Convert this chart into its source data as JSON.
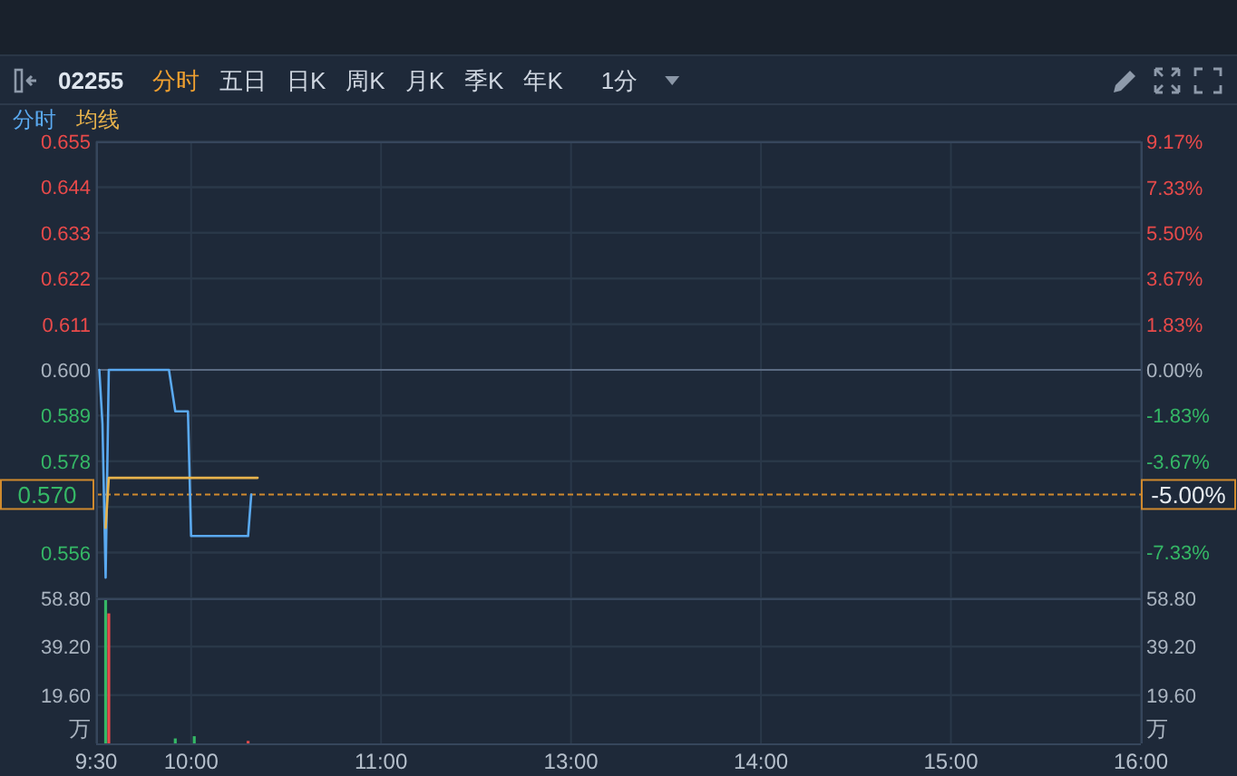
{
  "chart_data": [
    {
      "type": "line",
      "title": "02255",
      "annotations": [
        "分时",
        "五日",
        "日K",
        "周K",
        "月K",
        "季K",
        "年K",
        "1分",
        "-5.00%"
      ],
      "categories": [
        null,
        null,
        null,
        null,
        null,
        null,
        null,
        null,
        null,
        null,
        null,
        null,
        null,
        null,
        null,
        null,
        null,
        null,
        null,
        null,
        null,
        null,
        null,
        null,
        null,
        null,
        null,
        null,
        null,
        null,
        null,
        null,
        null,
        null,
        null,
        null,
        null,
        null,
        null,
        null,
        null,
        null,
        null,
        null,
        null,
        null,
        null,
        null,
        null,
        null,
        null,
        null,
        null,
        null,
        null,
        null,
        null,
        null,
        null,
        null,
        null,
        null,
        null,
        null,
        null,
        null,
        null,
        null,
        null,
        null,
        null,
        null,
        null,
        null,
        null,
        null,
        null,
        null,
        null,
        null,
        null,
        null,
        null,
        null,
        null,
        null,
        null,
        null,
        null,
        null,
        null,
        null,
        null,
        null,
        null,
        null,
        null,
        null,
        null,
        null,
        null,
        null,
        null,
        null,
        null,
        null,
        null,
        null,
        null,
        null,
        null,
        null,
        null,
        null,
        null,
        null,
        null,
        null,
        null,
        null,
        null,
        null,
        null,
        null,
        null,
        null,
        null,
        null,
        null,
        null,
        null,
        null,
        null,
        null,
        null,
        null,
        null,
        null,
        null,
        null,
        null,
        null,
        null,
        null,
        null,
        null,
        null,
        null,
        null,
        null,
        null,
        null,
        null,
        null,
        null,
        null,
        null,
        null,
        null,
        null,
        null,
        null,
        null,
        null,
        null,
        null,
        null,
        null,
        null,
        null,
        null,
        null,
        null,
        null,
        null,
        null,
        null,
        null,
        null,
        null,
        null,
        null,
        null,
        null,
        null,
        null,
        null,
        null,
        null,
        null,
        null,
        null,
        null,
        null,
        null,
        null,
        null,
        null,
        null,
        null,
        null,
        null,
        null,
        null,
        null,
        null,
        null,
        null,
        null,
        null,
        null,
        null,
        null,
        null,
        null,
        null,
        null,
        null,
        null,
        null,
        null,
        null,
        null,
        null,
        null,
        null,
        null,
        null,
        null,
        null,
        null,
        null,
        null,
        null,
        null,
        null,
        null,
        null,
        null,
        null,
        null,
        null,
        null,
        null,
        null,
        null,
        null,
        null,
        null,
        null,
        null,
        null,
        null,
        null,
        null,
        null,
        null,
        null,
        null,
        null,
        null,
        null,
        null,
        null,
        null,
        null,
        null,
        null,
        null,
        null,
        null,
        null,
        null,
        null,
        null,
        null,
        null,
        null,
        null,
        null,
        null,
        null,
        null,
        null,
        null,
        null,
        null,
        null,
        null,
        null,
        null,
        null,
        null,
        null,
        null,
        null,
        null,
        null,
        null,
        null,
        null,
        null,
        null,
        null,
        null,
        null,
        null,
        null,
        null,
        null,
        null,
        null,
        null,
        null,
        null,
        null,
        null,
        null,
        null,
        null,
        null,
        null,
        null,
        null,
        null,
        null,
        null,
        null,
        null,
        null,
        null
      ],
      "ylim": [
        0.545,
        0.655
      ],
      "yticks": [
        {
          "value": 0.655,
          "label": "0.655"
        },
        {
          "value": 0.644,
          "label": "0.644"
        },
        {
          "value": 0.633,
          "label": "0.633"
        },
        {
          "value": 0.622,
          "label": "0.622"
        },
        {
          "value": 0.611,
          "label": "0.611"
        },
        {
          "value": 0.6,
          "label": "0.600"
        },
        {
          "value": 0.589,
          "label": "0.589"
        },
        {
          "value": 0.578,
          "label": "0.578"
        },
        {
          "value": 0.567,
          "label": null
        },
        {
          "value": 0.556,
          "label": "0.556"
        }
      ],
      "y2lim": [
        -9.17,
        9.17
      ],
      "y2ticks": [
        {
          "value": 9.17,
          "label": "9.17%"
        },
        {
          "value": 7.33,
          "label": "7.33%"
        },
        {
          "value": 5.5,
          "label": "5.50%"
        },
        {
          "value": 3.67,
          "label": "3.67%"
        },
        {
          "value": 1.83,
          "label": "1.83%"
        },
        {
          "value": 0,
          "label": "0.00%"
        },
        {
          "value": -1.83,
          "label": "-1.83%"
        },
        {
          "value": -3.67,
          "label": "-3.67%"
        },
        {
          "value": -5.5,
          "label": null
        },
        {
          "value": -7.33,
          "label": "-7.33%"
        }
      ],
      "series": [
        {
          "name": "分时",
          "color": "#5aa9f0",
          "values": [
            null,
            0.6,
            0.587,
            0.55,
            0.6,
            0.6,
            0.6,
            0.6,
            0.6,
            0.6,
            0.6,
            0.6,
            0.6,
            0.6,
            0.6,
            0.6,
            0.6,
            0.6,
            0.6,
            0.6,
            0.6,
            0.6,
            0.6,
            0.6,
            0.595,
            0.59,
            0.59,
            0.59,
            0.59,
            0.59,
            0.56,
            0.56,
            0.56,
            0.56,
            0.56,
            0.56,
            0.56,
            0.56,
            0.56,
            0.56,
            0.56,
            0.56,
            0.56,
            0.56,
            0.56,
            0.56,
            0.56,
            0.56,
            0.56,
            0.57,
            null,
            null,
            null,
            null,
            null,
            null,
            null,
            null,
            null,
            null,
            null,
            null,
            null,
            null,
            null,
            null,
            null,
            null,
            null,
            null,
            null,
            null,
            null,
            null,
            null,
            null,
            null,
            null,
            null,
            null,
            null,
            null,
            null,
            null,
            null,
            null,
            null,
            null,
            null,
            null,
            null,
            null,
            null,
            null,
            null,
            null,
            null,
            null,
            null,
            null,
            null,
            null,
            null,
            null,
            null,
            null,
            null,
            null,
            null,
            null,
            null,
            null,
            null,
            null,
            null,
            null,
            null,
            null,
            null,
            null,
            null,
            null,
            null,
            null,
            null,
            null,
            null,
            null,
            null,
            null,
            null,
            null,
            null,
            null,
            null,
            null,
            null,
            null,
            null,
            null,
            null,
            null,
            null,
            null,
            null,
            null,
            null,
            null,
            null,
            null,
            null,
            null,
            null,
            null,
            null,
            null,
            null,
            null,
            null,
            null,
            null,
            null,
            null,
            null,
            null,
            null,
            null,
            null,
            null,
            null,
            null,
            null,
            null,
            null,
            null,
            null,
            null,
            null,
            null,
            null,
            null,
            null,
            null,
            null,
            null,
            null,
            null,
            null,
            null,
            null,
            null,
            null,
            null,
            null,
            null,
            null,
            null,
            null,
            null,
            null,
            null,
            null,
            null,
            null,
            null,
            null,
            null,
            null,
            null,
            null,
            null,
            null,
            null,
            null,
            null,
            null,
            null,
            null,
            null,
            null,
            null,
            null,
            null,
            null,
            null,
            null,
            null,
            null,
            null,
            null,
            null,
            null,
            null,
            null,
            null,
            null,
            null,
            null,
            null,
            null,
            null,
            null,
            null,
            null,
            null,
            null,
            null,
            null,
            null,
            null,
            null,
            null,
            null,
            null,
            null,
            null,
            null,
            null,
            null,
            null,
            null,
            null,
            null,
            null,
            null,
            null,
            null,
            null,
            null,
            null,
            null,
            null,
            null,
            null,
            null,
            null,
            null,
            null,
            null,
            null,
            null,
            null,
            null,
            null,
            null,
            null,
            null,
            null,
            null,
            null,
            null,
            null,
            null,
            null,
            null,
            null,
            null,
            null,
            null,
            null,
            null,
            null,
            null,
            null,
            null,
            null,
            null,
            null,
            null,
            null,
            null,
            null,
            null,
            null,
            null,
            null,
            null,
            null,
            null,
            null,
            null,
            null,
            null,
            null,
            null,
            null,
            null,
            null,
            null,
            null,
            null
          ]
        },
        {
          "name": "均线",
          "color": "#e8b34c",
          "values": [
            null,
            null,
            null,
            0.562,
            0.574,
            0.574,
            0.574,
            0.574,
            0.574,
            0.574,
            0.574,
            0.574,
            0.574,
            0.574,
            0.574,
            0.574,
            0.574,
            0.574,
            0.574,
            0.574,
            0.574,
            0.574,
            0.574,
            0.574,
            0.574,
            0.574,
            0.574,
            0.574,
            0.574,
            0.574,
            0.574,
            0.574,
            0.574,
            0.574,
            0.574,
            0.574,
            0.574,
            0.574,
            0.574,
            0.574,
            0.574,
            0.574,
            0.574,
            0.574,
            0.574,
            0.574,
            0.574,
            0.574,
            0.574,
            0.574,
            0.574,
            0.574,
            null,
            null,
            null,
            null,
            null,
            null,
            null,
            null,
            null,
            null,
            null,
            null,
            null,
            null,
            null,
            null,
            null,
            null,
            null,
            null,
            null,
            null,
            null,
            null,
            null,
            null,
            null,
            null,
            null,
            null,
            null,
            null,
            null,
            null,
            null,
            null,
            null,
            null,
            null,
            null,
            null,
            null,
            null,
            null,
            null,
            null,
            null,
            null,
            null,
            null,
            null,
            null,
            null,
            null,
            null,
            null,
            null,
            null,
            null,
            null,
            null,
            null,
            null,
            null,
            null,
            null,
            null,
            null,
            null,
            null,
            null,
            null,
            null,
            null,
            null,
            null,
            null,
            null,
            null,
            null,
            null,
            null,
            null,
            null,
            null,
            null,
            null,
            null,
            null,
            null,
            null,
            null,
            null,
            null,
            null,
            null,
            null,
            null,
            null,
            null,
            null,
            null,
            null,
            null,
            null,
            null,
            null,
            null,
            null,
            null,
            null,
            null,
            null,
            null,
            null,
            null,
            null,
            null,
            null,
            null,
            null,
            null,
            null,
            null,
            null,
            null,
            null,
            null,
            null,
            null,
            null,
            null,
            null,
            null,
            null,
            null,
            null,
            null,
            null,
            null,
            null,
            null,
            null,
            null,
            null,
            null,
            null,
            null,
            null,
            null,
            null,
            null,
            null,
            null,
            null,
            null,
            null,
            null,
            null,
            null,
            null,
            null,
            null,
            null,
            null,
            null,
            null,
            null,
            null,
            null,
            null,
            null,
            null,
            null,
            null,
            null,
            null,
            null,
            null,
            null,
            null,
            null,
            null,
            null,
            null,
            null,
            null,
            null,
            null,
            null,
            null,
            null,
            null,
            null,
            null,
            null,
            null,
            null,
            null,
            null,
            null,
            null,
            null,
            null,
            null,
            null,
            null,
            null,
            null,
            null,
            null,
            null,
            null,
            null,
            null,
            null,
            null,
            null,
            null,
            null,
            null,
            null,
            null,
            null,
            null,
            null,
            null,
            null,
            null,
            null,
            null,
            null,
            null,
            null,
            null,
            null,
            null,
            null,
            null,
            null,
            null,
            null,
            null,
            null,
            null,
            null,
            null,
            null,
            null,
            null,
            null,
            null,
            null,
            null,
            null,
            null,
            null,
            null,
            null,
            null,
            null,
            null,
            null,
            null,
            null,
            null,
            null,
            null,
            null,
            null,
            null,
            null,
            null,
            null,
            null,
            null,
            null,
            null,
            null
          ]
        }
      ],
      "ref_lines": [
        {
          "axis": "y",
          "value": 0.6,
          "color": "#5b6b82"
        },
        {
          "axis": "y",
          "value": 0.57,
          "label": "0.570",
          "color": "#d08a2e",
          "line_style": "dashed"
        }
      ],
      "grid": true,
      "legend": "top left",
      "tick_labels": "y"
    },
    {
      "type": "bar",
      "ylabel": "万",
      "y2label": "万",
      "categories": [
        "9:30",
        null,
        null,
        null,
        null,
        null,
        null,
        null,
        null,
        null,
        null,
        null,
        null,
        null,
        null,
        null,
        null,
        null,
        null,
        null,
        null,
        null,
        null,
        null,
        null,
        null,
        null,
        null,
        null,
        null,
        "10:00",
        null,
        null,
        null,
        null,
        null,
        null,
        null,
        null,
        null,
        null,
        null,
        null,
        null,
        null,
        null,
        null,
        null,
        null,
        null,
        null,
        null,
        null,
        null,
        null,
        null,
        null,
        null,
        null,
        null,
        null,
        null,
        null,
        null,
        null,
        null,
        null,
        null,
        null,
        null,
        null,
        null,
        null,
        null,
        null,
        null,
        null,
        null,
        null,
        null,
        null,
        null,
        null,
        null,
        null,
        null,
        null,
        null,
        null,
        null,
        "11:00",
        null,
        null,
        null,
        null,
        null,
        null,
        null,
        null,
        null,
        null,
        null,
        null,
        null,
        null,
        null,
        null,
        null,
        null,
        null,
        null,
        null,
        null,
        null,
        null,
        null,
        null,
        null,
        null,
        null,
        null,
        null,
        null,
        null,
        null,
        null,
        null,
        null,
        null,
        null,
        null,
        null,
        null,
        null,
        null,
        null,
        null,
        null,
        null,
        null,
        null,
        null,
        null,
        null,
        null,
        null,
        null,
        null,
        null,
        null,
        "13:00",
        null,
        null,
        null,
        null,
        null,
        null,
        null,
        null,
        null,
        null,
        null,
        null,
        null,
        null,
        null,
        null,
        null,
        null,
        null,
        null,
        null,
        null,
        null,
        null,
        null,
        null,
        null,
        null,
        null,
        null,
        null,
        null,
        null,
        null,
        null,
        null,
        null,
        null,
        null,
        null,
        null,
        null,
        null,
        null,
        null,
        null,
        null,
        null,
        null,
        null,
        null,
        null,
        null,
        null,
        null,
        null,
        null,
        null,
        null,
        "14:00",
        null,
        null,
        null,
        null,
        null,
        null,
        null,
        null,
        null,
        null,
        null,
        null,
        null,
        null,
        null,
        null,
        null,
        null,
        null,
        null,
        null,
        null,
        null,
        null,
        null,
        null,
        null,
        null,
        null,
        null,
        null,
        null,
        null,
        null,
        null,
        null,
        null,
        null,
        null,
        null,
        null,
        null,
        null,
        null,
        null,
        null,
        null,
        null,
        null,
        null,
        null,
        null,
        null,
        null,
        null,
        null,
        null,
        null,
        null,
        "15:00",
        null,
        null,
        null,
        null,
        null,
        null,
        null,
        null,
        null,
        null,
        null,
        null,
        null,
        null,
        null,
        null,
        null,
        null,
        null,
        null,
        null,
        null,
        null,
        null,
        null,
        null,
        null,
        null,
        null,
        null,
        null,
        null,
        null,
        null,
        null,
        null,
        null,
        null,
        null,
        null,
        null,
        null,
        null,
        null,
        null,
        null,
        null,
        null,
        null,
        null,
        null,
        null,
        null,
        null,
        null,
        null,
        null,
        null,
        null,
        "16:00"
      ],
      "series": [
        {
          "color": "#35b866",
          "values": [
            null,
            null,
            null,
            58.1,
            null,
            null,
            null,
            null,
            null,
            null,
            null,
            null,
            null,
            null,
            null,
            null,
            null,
            null,
            null,
            null,
            null,
            null,
            null,
            null,
            null,
            2.0,
            null,
            null,
            null,
            null,
            null,
            2.9,
            null,
            null,
            null,
            null,
            null,
            null,
            null,
            null,
            null,
            null,
            null,
            null,
            null,
            null,
            null,
            null,
            null,
            null,
            null,
            null,
            null,
            null,
            null,
            null,
            null,
            null,
            null,
            null,
            null,
            null,
            null,
            null,
            null,
            null,
            null,
            null,
            null,
            null,
            null,
            null,
            null,
            null,
            null,
            null,
            null,
            null,
            null,
            null,
            null,
            null,
            null,
            null,
            null,
            null,
            null,
            null,
            null,
            null,
            null,
            null,
            null,
            null,
            null,
            null,
            null,
            null,
            null,
            null,
            null,
            null,
            null,
            null,
            null,
            null,
            null,
            null,
            null,
            null,
            null,
            null,
            null,
            null,
            null,
            null,
            null,
            null,
            null,
            null,
            null,
            null,
            null,
            null,
            null,
            null,
            null,
            null,
            null,
            null,
            null,
            null,
            null,
            null,
            null,
            null,
            null,
            null,
            null,
            null,
            null,
            null,
            null,
            null,
            null,
            null,
            null,
            null,
            null,
            null,
            null,
            null,
            null,
            null,
            null,
            null,
            null,
            null,
            null,
            null,
            null,
            null,
            null,
            null,
            null,
            null,
            null,
            null,
            null,
            null,
            null,
            null,
            null,
            null,
            null,
            null,
            null,
            null,
            null,
            null,
            null,
            null,
            null,
            null,
            null,
            null,
            null,
            null,
            null,
            null,
            null,
            null,
            null,
            null,
            null,
            null,
            null,
            null,
            null,
            null,
            null,
            null,
            null,
            null,
            null,
            null,
            null,
            null,
            null,
            null,
            null,
            null,
            null,
            null,
            null,
            null,
            null,
            null,
            null,
            null,
            null,
            null,
            null,
            null,
            null,
            null,
            null,
            null,
            null,
            null,
            null,
            null,
            null,
            null,
            null,
            null,
            null,
            null,
            null,
            null,
            null,
            null,
            null,
            null,
            null,
            null,
            null,
            null,
            null,
            null,
            null,
            null,
            null,
            null,
            null,
            null,
            null,
            null,
            null,
            null,
            null,
            null,
            null,
            null,
            null,
            null,
            null,
            null,
            null,
            null,
            null,
            null,
            null,
            null,
            null,
            null,
            null,
            null,
            null,
            null,
            null,
            null,
            null,
            null,
            null,
            null,
            null,
            null,
            null,
            null,
            null,
            null,
            null,
            null,
            null,
            null,
            null,
            null,
            null,
            null,
            null,
            null,
            null,
            null,
            null,
            null,
            null,
            null,
            null,
            null,
            null,
            null,
            null,
            null,
            null,
            null,
            null,
            null,
            null,
            null,
            null,
            null,
            null,
            null,
            null,
            null,
            null,
            null,
            null,
            null,
            null
          ]
        },
        {
          "color": "#e84a4a",
          "values": [
            null,
            null,
            null,
            null,
            52.7,
            null,
            null,
            null,
            null,
            null,
            null,
            null,
            null,
            null,
            null,
            null,
            null,
            null,
            null,
            null,
            null,
            null,
            null,
            null,
            null,
            null,
            null,
            null,
            null,
            null,
            null,
            null,
            null,
            null,
            null,
            null,
            null,
            null,
            null,
            null,
            null,
            null,
            null,
            null,
            null,
            null,
            null,
            null,
            1.0,
            null,
            null,
            null,
            null,
            null,
            null,
            null,
            null,
            null,
            null,
            null,
            null,
            null,
            null,
            null,
            null,
            null,
            null,
            null,
            null,
            null,
            null,
            null,
            null,
            null,
            null,
            null,
            null,
            null,
            null,
            null,
            null,
            null,
            null,
            null,
            null,
            null,
            null,
            null,
            null,
            null,
            null,
            null,
            null,
            null,
            null,
            null,
            null,
            null,
            null,
            null,
            null,
            null,
            null,
            null,
            null,
            null,
            null,
            null,
            null,
            null,
            null,
            null,
            null,
            null,
            null,
            null,
            null,
            null,
            null,
            null,
            null,
            null,
            null,
            null,
            null,
            null,
            null,
            null,
            null,
            null,
            null,
            null,
            null,
            null,
            null,
            null,
            null,
            null,
            null,
            null,
            null,
            null,
            null,
            null,
            null,
            null,
            null,
            null,
            null,
            null,
            null,
            null,
            null,
            null,
            null,
            null,
            null,
            null,
            null,
            null,
            null,
            null,
            null,
            null,
            null,
            null,
            null,
            null,
            null,
            null,
            null,
            null,
            null,
            null,
            null,
            null,
            null,
            null,
            null,
            null,
            null,
            null,
            null,
            null,
            null,
            null,
            null,
            null,
            null,
            null,
            null,
            null,
            null,
            null,
            null,
            null,
            null,
            null,
            null,
            null,
            null,
            null,
            null,
            null,
            null,
            null,
            null,
            null,
            null,
            null,
            null,
            null,
            null,
            null,
            null,
            null,
            null,
            null,
            null,
            null,
            null,
            null,
            null,
            null,
            null,
            null,
            null,
            null,
            null,
            null,
            null,
            null,
            null,
            null,
            null,
            null,
            null,
            null,
            null,
            null,
            null,
            null,
            null,
            null,
            null,
            null,
            null,
            null,
            null,
            null,
            null,
            null,
            null,
            null,
            null,
            null,
            null,
            null,
            null,
            null,
            null,
            null,
            null,
            null,
            null,
            null,
            null,
            null,
            null,
            null,
            null,
            null,
            null,
            null,
            null,
            null,
            null,
            null,
            null,
            null,
            null,
            null,
            null,
            null,
            null,
            null,
            null,
            null,
            null,
            null,
            null,
            null,
            null,
            null,
            null,
            null,
            null,
            null,
            null,
            null,
            null,
            null,
            null,
            null,
            null,
            null,
            null,
            null,
            null,
            null,
            null,
            null,
            null,
            null,
            null,
            null,
            null,
            null,
            null,
            null,
            null,
            null,
            null,
            null,
            null,
            null,
            null,
            null,
            null,
            null,
            null
          ]
        }
      ],
      "ylim": [
        0,
        58.8
      ],
      "yticks": [
        {
          "value": 19.6,
          "label": "19.60"
        },
        {
          "value": 39.2,
          "label": "39.20"
        },
        {
          "value": 58.8,
          "label": "58.80"
        }
      ],
      "y2lim": [
        0,
        58.8
      ],
      "y2ticks": [
        {
          "value": 19.6,
          "label": "19.60"
        },
        {
          "value": 39.2,
          "label": "39.20"
        },
        {
          "value": 58.8,
          "label": "58.80"
        }
      ],
      "grid": true
    }
  ]
}
